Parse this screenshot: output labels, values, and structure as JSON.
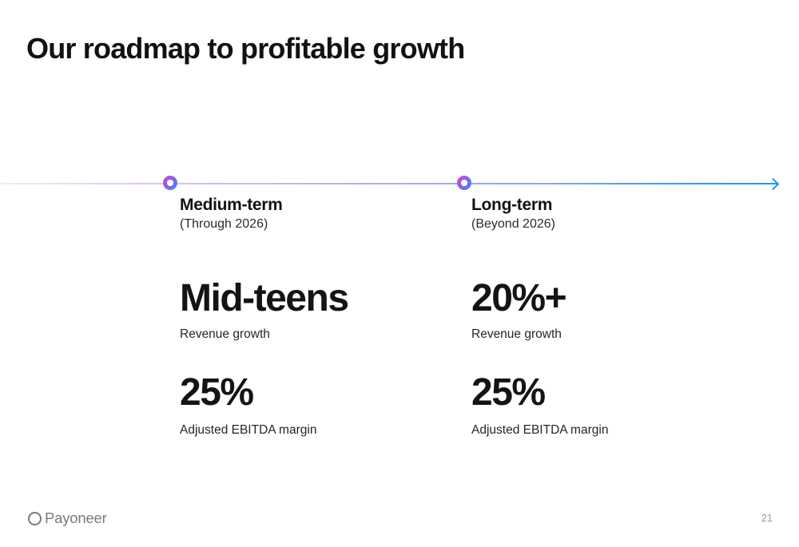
{
  "slide": {
    "title": "Our roadmap to profitable growth",
    "page_number": "21"
  },
  "timeline": {
    "markers": [
      "medium-term",
      "long-term"
    ],
    "colors": {
      "line_start": "#f9e9f4",
      "line_mid": "#c6b0ec",
      "line_end": "#1e96f3",
      "marker_purple": "#c44ad6",
      "marker_blue": "#4485f6"
    }
  },
  "columns": [
    {
      "label": "Medium-term",
      "sublabel": "(Through 2026)",
      "metrics": [
        {
          "value": "Mid-teens",
          "caption": "Revenue growth"
        },
        {
          "value": "25%",
          "caption": "Adjusted EBITDA margin"
        }
      ]
    },
    {
      "label": "Long-term",
      "sublabel": "(Beyond 2026)",
      "metrics": [
        {
          "value": "20%+",
          "caption": "Revenue growth"
        },
        {
          "value": "25%",
          "caption": "Adjusted EBITDA margin"
        }
      ]
    }
  ],
  "footer": {
    "logo_text": "Payoneer",
    "logo_color": "#7b7b7b"
  }
}
